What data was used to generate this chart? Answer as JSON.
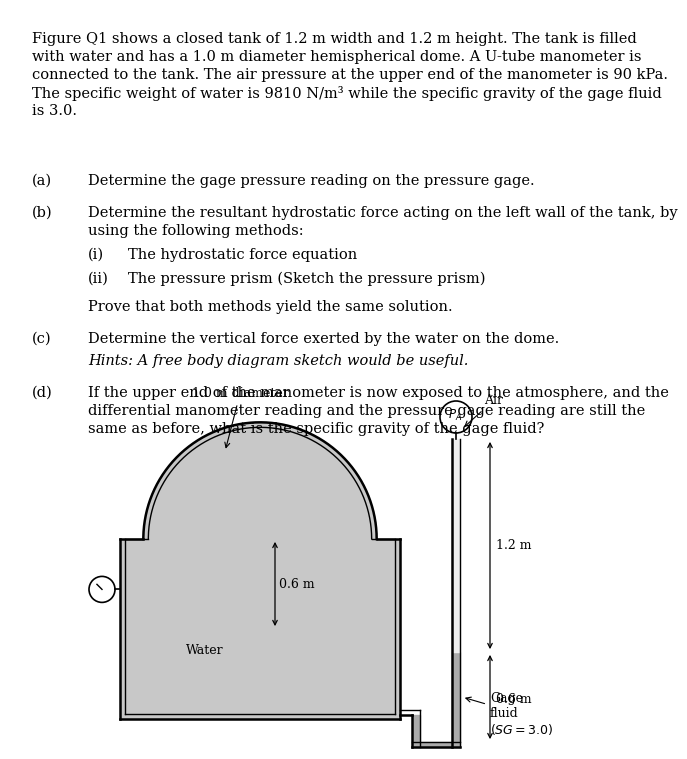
{
  "bg_color": "#ffffff",
  "text_color": "#000000",
  "line_color": "#000000",
  "water_fill": "#c8c8c8",
  "figure_width": 6.13,
  "figure_height": 7.39,
  "para_lines": [
    "Figure Q1 shows a closed tank of 1.2 m width and 1.2 m height. The tank is filled",
    "with water and has a 1.0 m diameter hemispherical dome. A U-tube manometer is",
    "connected to the tank. The air pressure at the upper end of the manometer is 90 kPa.",
    "The specific weight of water is 9810 N/m³ while the specific gravity of the gage fluid",
    "is 3.0."
  ],
  "qa_items": [
    {
      "tag": "(a)",
      "indent": 1,
      "style": "normal",
      "lines": [
        "Determine the gage pressure reading on the pressure gage."
      ]
    },
    {
      "tag": "(b)",
      "indent": 1,
      "style": "normal",
      "lines": [
        "Determine the resultant hydrostatic force acting on the left wall of the tank, by",
        "using the following methods:"
      ]
    },
    {
      "tag": "(i)",
      "indent": 2,
      "style": "normal",
      "lines": [
        "The hydrostatic force equation"
      ]
    },
    {
      "tag": "(ii)",
      "indent": 2,
      "style": "normal",
      "lines": [
        "The pressure prism (Sketch the pressure prism)"
      ]
    },
    {
      "tag": "",
      "indent": 1,
      "style": "normal",
      "lines": [
        "Prove that both methods yield the same solution."
      ]
    },
    {
      "tag": "(c)",
      "indent": 1,
      "style": "normal",
      "lines": [
        "Determine the vertical force exerted by the water on the dome."
      ]
    },
    {
      "tag": "",
      "indent": 1,
      "style": "italic",
      "lines": [
        "Hints: A free body diagram sketch would be useful."
      ]
    },
    {
      "tag": "(d)",
      "indent": 1,
      "style": "normal",
      "lines": [
        "If the upper end of the manometer is now exposed to the atmosphere, and the",
        "differential manometer reading and the pressure gage reading are still the",
        "same as before, what is the specific gravity of the gage fluid?"
      ]
    }
  ]
}
